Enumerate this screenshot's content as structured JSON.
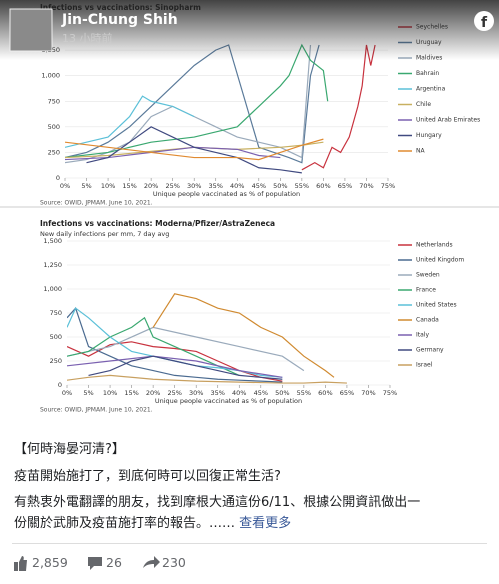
{
  "post": {
    "author": "Jin-Chung Shih",
    "time": "13 小時前",
    "text": [
      "【何時海晏河清?】",
      "疫苗開始施打了，到底何時可以回復正常生活?",
      "有熱衷外電翻譯的朋友，找到摩根大通這份6/11、根據公開資訊做出一",
      "份關於武肺及疫苗施打率的報告。……"
    ],
    "see_more": "查看更多",
    "reactions": "2,859",
    "comments": "26",
    "shares": "230"
  },
  "charts": [
    {
      "type": "line",
      "title": "Infections vs vaccinations: Sinopharm",
      "xlabel": "Unique people vaccinated as % of population",
      "source": "Source: OWID, JPMAM. June 10, 2021.",
      "xlim": [
        0,
        75
      ],
      "xticks": [
        {
          "value": 0,
          "label": "0%"
        },
        {
          "value": 5,
          "label": "5%"
        },
        {
          "value": 10,
          "label": "10%"
        },
        {
          "value": 15,
          "label": "15%"
        },
        {
          "value": 20,
          "label": "20%"
        },
        {
          "value": 25,
          "label": "25%"
        },
        {
          "value": 30,
          "label": "30%"
        },
        {
          "value": 35,
          "label": "35%"
        },
        {
          "value": 40,
          "label": "40%"
        },
        {
          "value": 45,
          "label": "45%"
        },
        {
          "value": 50,
          "label": "50%"
        },
        {
          "value": 55,
          "label": "55%"
        },
        {
          "value": 60,
          "label": "60%"
        },
        {
          "value": 65,
          "label": "65%"
        },
        {
          "value": 70,
          "label": "70%"
        },
        {
          "value": 75,
          "label": "75%"
        }
      ],
      "ylim": [
        0,
        1300
      ],
      "yticks": [
        0,
        250,
        500,
        750,
        {
          "value": 1000,
          "label": "1,000"
        },
        {
          "value": 1250,
          "label": "1,250"
        }
      ],
      "series": [
        {
          "name": "Seychelles",
          "color": "#c8323e",
          "x": [
            55,
            58,
            60,
            62,
            64,
            66,
            68,
            69,
            70,
            71,
            72
          ],
          "values": [
            80,
            150,
            100,
            300,
            250,
            400,
            700,
            900,
            1300,
            1100,
            1300
          ]
        },
        {
          "name": "Uruguay",
          "color": "#5a7a9a",
          "x": [
            0,
            5,
            10,
            15,
            20,
            25,
            30,
            35,
            38,
            45,
            52,
            55,
            57,
            59
          ],
          "values": [
            200,
            250,
            350,
            500,
            700,
            900,
            1100,
            1250,
            1300,
            300,
            200,
            150,
            1000,
            1300
          ]
        },
        {
          "name": "Maldives",
          "color": "#9aaabb",
          "x": [
            0,
            5,
            10,
            15,
            20,
            25,
            30,
            35,
            40,
            45,
            50,
            55,
            57
          ],
          "values": [
            150,
            180,
            250,
            350,
            600,
            700,
            600,
            500,
            400,
            350,
            300,
            200,
            1300
          ]
        },
        {
          "name": "Bahrain",
          "color": "#3aa870",
          "x": [
            0,
            10,
            20,
            30,
            35,
            40,
            45,
            50,
            52,
            55,
            57,
            60,
            61
          ],
          "values": [
            200,
            250,
            350,
            400,
            450,
            500,
            700,
            900,
            1000,
            1300,
            1150,
            1050,
            750
          ]
        },
        {
          "name": "Argentina",
          "color": "#5bc0d8",
          "x": [
            0,
            5,
            10,
            15,
            18,
            20,
            25,
            30
          ],
          "values": [
            300,
            350,
            400,
            600,
            800,
            750,
            700,
            600
          ]
        },
        {
          "name": "Chile",
          "color": "#c8b060",
          "x": [
            0,
            10,
            20,
            30,
            40,
            50,
            55,
            60
          ],
          "values": [
            200,
            220,
            260,
            300,
            280,
            300,
            320,
            350
          ]
        },
        {
          "name": "United Arab Emirates",
          "color": "#7a60b0",
          "x": [
            0,
            10,
            20,
            30,
            40,
            45,
            50
          ],
          "values": [
            180,
            200,
            250,
            300,
            280,
            220,
            200
          ]
        },
        {
          "name": "Hungary",
          "color": "#404a80",
          "x": [
            5,
            10,
            15,
            20,
            25,
            30,
            35,
            40,
            45,
            50,
            55
          ],
          "values": [
            150,
            200,
            350,
            500,
            400,
            300,
            250,
            200,
            100,
            80,
            50
          ]
        },
        {
          "name": "NA",
          "color": "#e08a30",
          "x": [
            0,
            10,
            20,
            30,
            40,
            45,
            50,
            55,
            60
          ],
          "values": [
            350,
            300,
            250,
            200,
            200,
            180,
            250,
            320,
            380
          ]
        }
      ]
    },
    {
      "type": "line",
      "title": "Infections vs vaccinations: Moderna/Pfizer/AstraZeneca",
      "subtitle": "New daily infections per mm, 7 day avg",
      "xlabel": "Unique people vaccinated as % of population",
      "source": "Source: OWID, JPMAM. June 10, 2021.",
      "xlim": [
        0,
        75
      ],
      "xticks": [
        {
          "value": 0,
          "label": "0%"
        },
        {
          "value": 5,
          "label": "5%"
        },
        {
          "value": 10,
          "label": "10%"
        },
        {
          "value": 15,
          "label": "15%"
        },
        {
          "value": 20,
          "label": "20%"
        },
        {
          "value": 25,
          "label": "25%"
        },
        {
          "value": 30,
          "label": "30%"
        },
        {
          "value": 35,
          "label": "35%"
        },
        {
          "value": 40,
          "label": "40%"
        },
        {
          "value": 45,
          "label": "45%"
        },
        {
          "value": 50,
          "label": "50%"
        },
        {
          "value": 55,
          "label": "55%"
        },
        {
          "value": 60,
          "label": "60%"
        },
        {
          "value": 65,
          "label": "65%"
        },
        {
          "value": 70,
          "label": "70%"
        },
        {
          "value": 75,
          "label": "75%"
        }
      ],
      "ylim": [
        0,
        1500
      ],
      "yticks": [
        0,
        250,
        500,
        750,
        {
          "value": 1000,
          "label": "1,000"
        },
        {
          "value": 1250,
          "label": "1,250"
        },
        {
          "value": 1500,
          "label": "1,500"
        }
      ],
      "series": [
        {
          "name": "Netherlands",
          "color": "#c8323e",
          "x": [
            0,
            5,
            10,
            15,
            20,
            25,
            30,
            35,
            40,
            45,
            50
          ],
          "values": [
            400,
            300,
            420,
            450,
            400,
            380,
            350,
            250,
            150,
            80,
            40
          ]
        },
        {
          "name": "United Kingdom",
          "color": "#4a6a90",
          "x": [
            0,
            2,
            5,
            10,
            15,
            20,
            25,
            30,
            35,
            40,
            45,
            50
          ],
          "values": [
            700,
            800,
            400,
            300,
            200,
            150,
            100,
            80,
            60,
            50,
            40,
            30
          ]
        },
        {
          "name": "Sweden",
          "color": "#9aaabb",
          "x": [
            0,
            10,
            20,
            30,
            40,
            50,
            55
          ],
          "values": [
            300,
            400,
            600,
            500,
            400,
            300,
            150
          ]
        },
        {
          "name": "France",
          "color": "#3aa870",
          "x": [
            0,
            5,
            10,
            15,
            18,
            20,
            25,
            30,
            35,
            40
          ],
          "values": [
            300,
            350,
            500,
            600,
            700,
            500,
            400,
            300,
            200,
            100
          ]
        },
        {
          "name": "United States",
          "color": "#5bc0d8",
          "x": [
            0,
            2,
            5,
            10,
            15,
            20,
            25,
            30,
            35,
            40,
            45,
            50
          ],
          "values": [
            600,
            800,
            700,
            500,
            350,
            300,
            250,
            200,
            180,
            150,
            100,
            80
          ]
        },
        {
          "name": "Canada",
          "color": "#d08a30",
          "x": [
            20,
            25,
            30,
            35,
            40,
            45,
            50,
            55,
            60,
            62
          ],
          "values": [
            600,
            950,
            900,
            800,
            750,
            600,
            500,
            300,
            150,
            80
          ]
        },
        {
          "name": "Italy",
          "color": "#7a60b0",
          "x": [
            0,
            10,
            20,
            30,
            40,
            50
          ],
          "values": [
            200,
            250,
            300,
            250,
            150,
            80
          ]
        },
        {
          "name": "Germany",
          "color": "#404a80",
          "x": [
            5,
            10,
            15,
            20,
            25,
            30,
            35,
            40,
            45,
            50
          ],
          "values": [
            100,
            150,
            250,
            300,
            250,
            200,
            150,
            100,
            80,
            60
          ]
        },
        {
          "name": "Israel",
          "color": "#c8a060",
          "x": [
            0,
            5,
            10,
            20,
            30,
            40,
            50,
            55,
            60,
            65
          ],
          "values": [
            50,
            80,
            100,
            60,
            40,
            30,
            20,
            20,
            30,
            20
          ]
        }
      ]
    }
  ]
}
